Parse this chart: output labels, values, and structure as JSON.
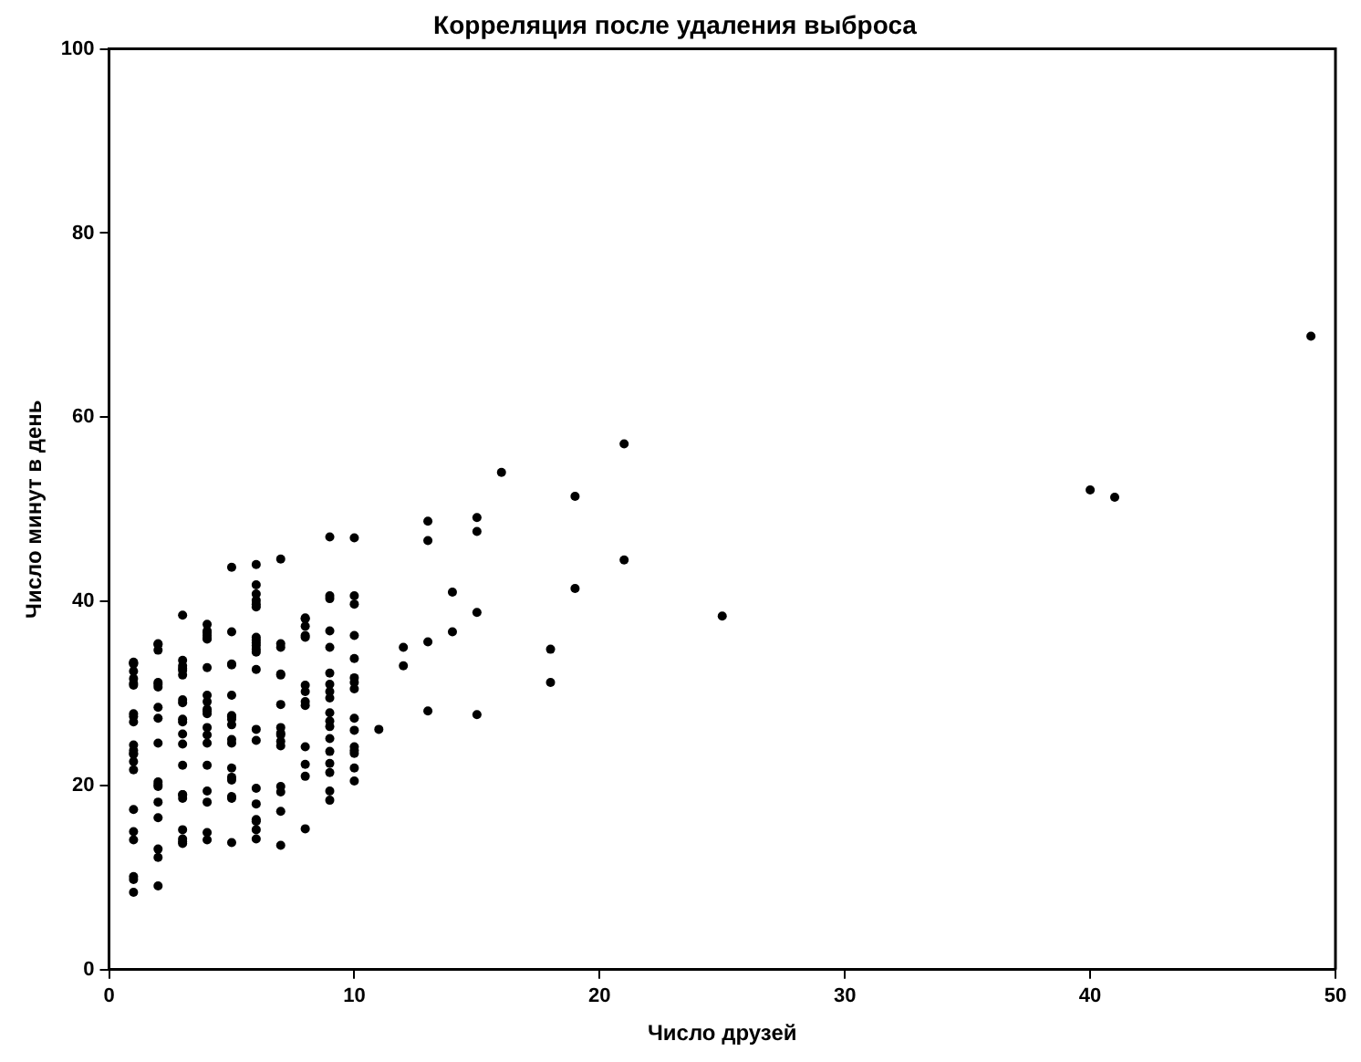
{
  "chart_data": {
    "type": "scatter",
    "title": "Корреляция после удаления выброса",
    "xlabel": "Число друзей",
    "ylabel": "Число минут в день",
    "x": [
      49,
      41,
      40,
      25,
      21,
      21,
      19,
      19,
      18,
      18,
      16,
      15,
      15,
      15,
      15,
      14,
      14,
      13,
      13,
      13,
      13,
      12,
      12,
      11,
      10,
      10,
      10,
      10,
      10,
      10,
      10,
      10,
      10,
      10,
      10,
      10,
      10,
      10,
      10,
      9,
      9,
      9,
      9,
      9,
      9,
      9,
      9,
      9,
      9,
      9,
      9,
      9,
      9,
      9,
      9,
      9,
      9,
      8,
      8,
      8,
      8,
      8,
      8,
      8,
      8,
      8,
      8,
      8,
      8,
      8,
      7,
      7,
      7,
      7,
      7,
      7,
      7,
      7,
      7,
      7,
      7,
      7,
      7,
      7,
      7,
      6,
      6,
      6,
      6,
      6,
      6,
      6,
      6,
      6,
      6,
      6,
      6,
      6,
      6,
      6,
      6,
      6,
      6,
      6,
      6,
      6,
      5,
      5,
      5,
      5,
      5,
      5,
      5,
      5,
      5,
      5,
      5,
      5,
      5,
      5,
      5,
      5,
      5,
      4,
      4,
      4,
      4,
      4,
      4,
      4,
      4,
      4,
      4,
      4,
      4,
      4,
      4,
      4,
      4,
      4,
      4,
      4,
      4,
      3,
      3,
      3,
      3,
      3,
      3,
      3,
      3,
      3,
      3,
      3,
      3,
      3,
      3,
      3,
      3,
      3,
      3,
      3,
      3,
      2,
      2,
      2,
      2,
      2,
      2,
      2,
      2,
      2,
      2,
      2,
      2,
      2,
      2,
      2,
      2,
      2,
      1,
      1,
      1,
      1,
      1,
      1,
      1,
      1,
      1,
      1,
      1,
      1,
      1,
      1,
      1,
      1,
      1,
      1,
      1,
      1,
      1,
      1
    ],
    "values": [
      68.8,
      51.3,
      52.1,
      38.4,
      44.5,
      57.1,
      51.4,
      41.4,
      31.2,
      34.8,
      54,
      38.8,
      47.6,
      49.1,
      27.7,
      41,
      36.7,
      48.7,
      28.1,
      46.6,
      35.6,
      33,
      35,
      26.1,
      23.8,
      39.7,
      40.6,
      31.7,
      31.2,
      36.3,
      20.5,
      21.9,
      26,
      27.3,
      23.5,
      46.9,
      30.5,
      33.8,
      24.2,
      21.4,
      27.9,
      32.2,
      40.6,
      25.1,
      19.4,
      22.4,
      18.4,
      47,
      23.7,
      26.4,
      27,
      36.8,
      40.3,
      35,
      29.5,
      30.2,
      31,
      38.1,
      38.2,
      36.3,
      21,
      30.9,
      36.1,
      28.7,
      29.1,
      37.3,
      15.3,
      24.2,
      22.3,
      30.2,
      25.5,
      19.9,
      35.4,
      44.6,
      17.2,
      13.5,
      26.3,
      35,
      32.1,
      24.8,
      19.3,
      28.8,
      24.3,
      32,
      25.7,
      24.9,
      16.3,
      34.5,
      15.2,
      39.7,
      40.8,
      26.1,
      35.8,
      34.8,
      16.1,
      44,
      18,
      19.7,
      32.6,
      39.4,
      14.2,
      35.2,
      40.1,
      41.8,
      35.5,
      36.1,
      43.7,
      24.6,
      20.9,
      21.9,
      18.8,
      27.6,
      27.2,
      26.6,
      29.8,
      20.6,
      27.5,
      13.8,
      33.2,
      25,
      33.1,
      36.7,
      18.6,
      14.9,
      22.2,
      36.8,
      25.5,
      24.6,
      26.3,
      18.2,
      28.1,
      19.4,
      29.8,
      32.8,
      36,
      28.3,
      27.8,
      35.9,
      29.1,
      36.3,
      14.1,
      36.6,
      37.5,
      26.9,
      18.6,
      38.5,
      24.5,
      19,
      33.6,
      14.2,
      29,
      32.5,
      25.6,
      22.2,
      19,
      32.7,
      15.2,
      13.9,
      27.2,
      32,
      29.3,
      33,
      13.7,
      20.4,
      27.3,
      18.2,
      35.4,
      28.5,
      9.1,
      24.6,
      20.1,
      35.3,
      19.9,
      31,
      16.5,
      12.2,
      30.7,
      31.2,
      34.7,
      13.1,
      27.5,
      33.2,
      31.6,
      14.1,
      33.4,
      17.4,
      10.1,
      24.4,
      9.8,
      23.4,
      30.9,
      15,
      21.7,
      31.1,
      33.3,
      22.6,
      26.9,
      23.5,
      8.4,
      27.8,
      32.4,
      23.8
    ],
    "color": "#000000",
    "marker": "circle",
    "xlim": [
      0,
      50
    ],
    "xticks": [
      0,
      10,
      20,
      30,
      40,
      50
    ],
    "ylim": [
      0,
      100
    ],
    "yticks": [
      0,
      20,
      40,
      60,
      80,
      100
    ],
    "grid": false,
    "legend": false
  }
}
